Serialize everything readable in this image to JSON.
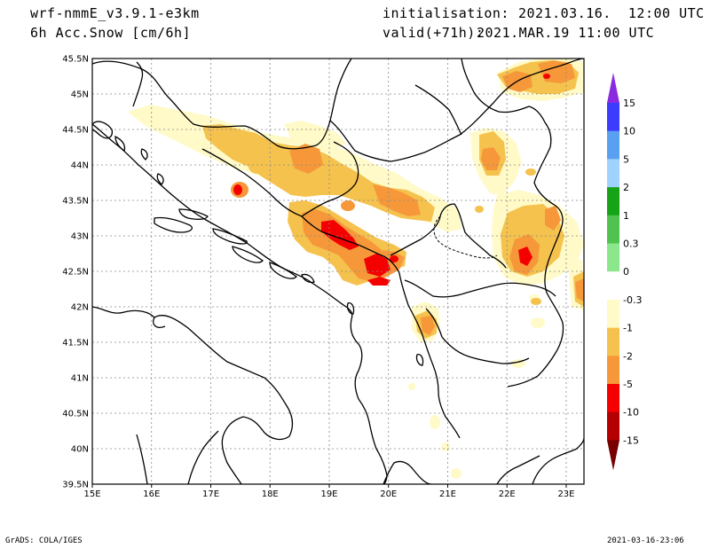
{
  "header": {
    "model": "wrf-nmmE_v3.9.1-e3km",
    "variable": "6h Acc.Snow [cm/6h]",
    "init_label": "initialisation:",
    "init_value": "2021.03.16.  12:00 UTC",
    "valid_label": "valid(+71h):",
    "valid_value": "2021.MAR.19 11:00 UTC"
  },
  "footer": {
    "credit": "GrADS: COLA/IGES",
    "timestamp": "2021-03-16-23:06"
  },
  "map": {
    "lon_labels": [
      "15E",
      "16E",
      "17E",
      "18E",
      "19E",
      "20E",
      "21E",
      "22E",
      "23E"
    ],
    "lat_labels": [
      "45.5N",
      "45N",
      "44.5N",
      "44N",
      "43.5N",
      "43N",
      "42.5N",
      "42N",
      "41.5N",
      "41N",
      "40.5N",
      "40N",
      "39.5N"
    ],
    "lon_range": [
      15,
      23.3
    ],
    "lat_range": [
      39.5,
      45.5
    ]
  },
  "colorbar": {
    "labels": [
      "15",
      "10",
      "5",
      "2",
      "1",
      "0.3",
      "0",
      "-0.3",
      "-1",
      "-2",
      "-5",
      "-10",
      "-15"
    ],
    "colors": [
      "#8a2be2",
      "#3c3cff",
      "#5aa0f0",
      "#a0d2ff",
      "#17a317",
      "#4fc24f",
      "#8ce68c",
      "#ffffff",
      "#fffac8",
      "#f5c24e",
      "#f6983a",
      "#f50000",
      "#b40000",
      "#780000"
    ]
  },
  "snow_colors": {
    "light": "#fffac8",
    "yellow": "#f5c24e",
    "orange": "#f6983a",
    "red": "#f50000"
  }
}
